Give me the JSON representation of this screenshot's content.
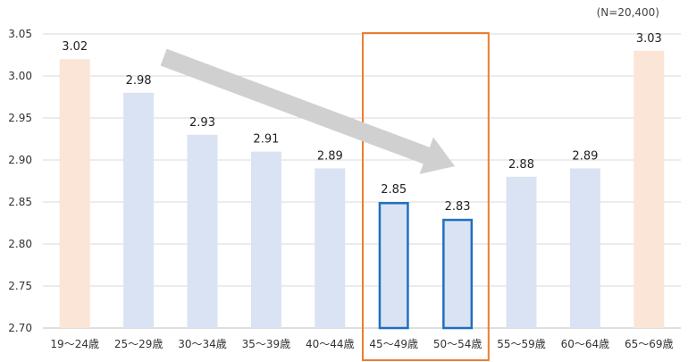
{
  "note": "(N=20,400)",
  "chart_data": {
    "type": "bar",
    "title": "",
    "xlabel": "",
    "ylabel": "",
    "ylim": [
      2.7,
      3.05
    ],
    "yticks": [
      "3.05",
      "3.00",
      "2.95",
      "2.90",
      "2.85",
      "2.80",
      "2.75",
      "2.70"
    ],
    "ytick_values": [
      3.05,
      3.0,
      2.95,
      2.9,
      2.85,
      2.8,
      2.75,
      2.7
    ],
    "categories": [
      "19～24歳",
      "25～29歳",
      "30～34歳",
      "35～39歳",
      "40～44歳",
      "45～49歳",
      "50～54歳",
      "55～59歳",
      "60～64歳",
      "65～69歳"
    ],
    "values": [
      3.02,
      2.98,
      2.93,
      2.91,
      2.89,
      2.85,
      2.83,
      2.88,
      2.89,
      3.03
    ],
    "labels": [
      "3.02",
      "2.98",
      "2.93",
      "2.91",
      "2.89",
      "2.85",
      "2.83",
      "2.88",
      "2.89",
      "3.03"
    ],
    "bar_styles": [
      "end",
      "normal",
      "normal",
      "normal",
      "normal",
      "highlight",
      "highlight",
      "normal",
      "normal",
      "end"
    ],
    "grid": true,
    "colors": {
      "normal_fill": "#dae3f3",
      "end_fill": "#fbe5d6",
      "highlight_fill": "#dae3f3",
      "highlight_stroke": "#1f6fbf",
      "box_stroke": "#ed7d31",
      "arrow_fill": "#d0d0d0",
      "grid": "#d9d9d9",
      "axis": "#bfbfbf"
    },
    "highlight_box_categories": [
      "45～49歳",
      "50～54歳"
    ],
    "trend_arrow": {
      "from": "25～29歳",
      "to": "50～54歳",
      "direction": "down"
    }
  }
}
